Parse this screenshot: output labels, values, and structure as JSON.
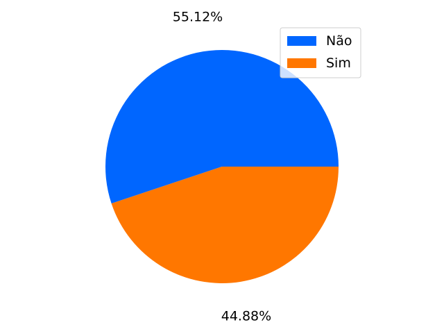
{
  "chart_data": {
    "type": "pie",
    "slices": [
      {
        "label": "Não",
        "value": 55.12,
        "value_label": "55.12%",
        "color": "#0066ff"
      },
      {
        "label": "Sim",
        "value": 44.88,
        "value_label": "44.88%",
        "color": "#ff7700"
      }
    ],
    "start_angle_deg": 0,
    "direction": "counterclockwise",
    "legend": {
      "placement": "top-right",
      "entries": [
        "Não",
        "Sim"
      ]
    },
    "title": "",
    "grid": false
  }
}
